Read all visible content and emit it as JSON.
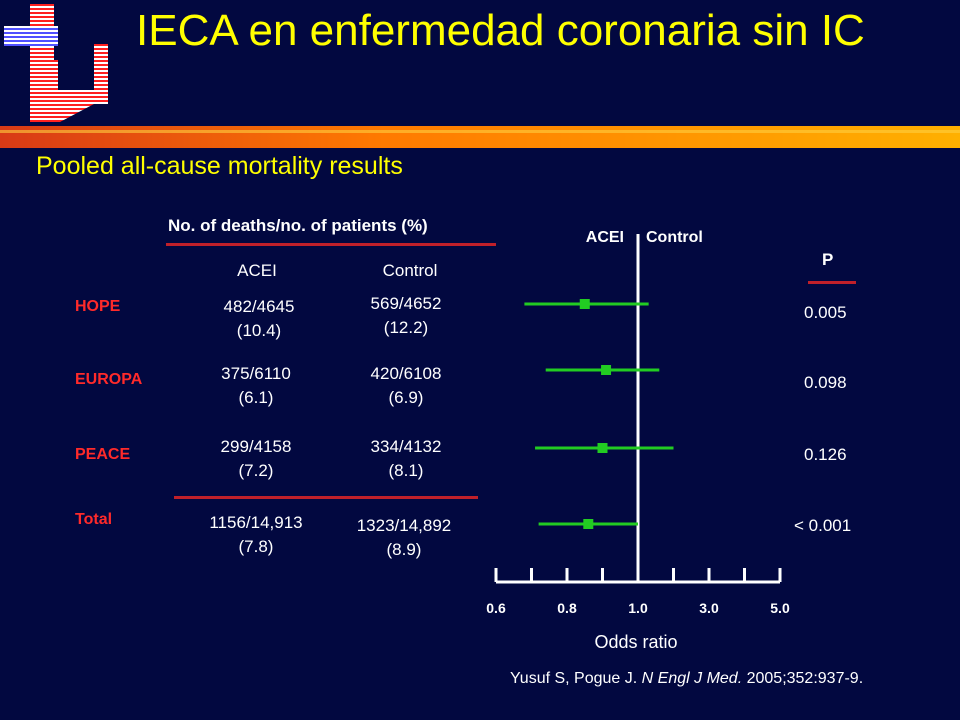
{
  "title": "IECA en enfermedad coronaria sin IC",
  "subtitle": "Pooled all-cause mortality results",
  "table": {
    "group_header": "No. of deaths/no. of patients (%)",
    "col_acei": "ACEI",
    "col_control": "Control",
    "p_header": "P",
    "rows": [
      {
        "trial": "HOPE",
        "acei_n": "482/4645",
        "acei_pct": "(10.4)",
        "control_n": "569/4652",
        "control_pct": "(12.2)",
        "p": "0.005"
      },
      {
        "trial": "EUROPA",
        "acei_n": "375/6110",
        "acei_pct": "(6.1)",
        "control_n": "420/6108",
        "control_pct": "(6.9)",
        "p": "0.098"
      },
      {
        "trial": "PEACE",
        "acei_n": "299/4158",
        "acei_pct": "(7.2)",
        "control_n": "334/4132",
        "control_pct": "(8.1)",
        "p": "0.126"
      },
      {
        "trial": "Total",
        "acei_n": "1156/14,913",
        "acei_pct": "(7.8)",
        "control_n": "1323/14,892",
        "control_pct": "(8.9)",
        "p": "< 0.001"
      }
    ]
  },
  "chart_data": {
    "type": "scatter",
    "title": "",
    "xlabel": "Odds ratio",
    "ylabel": "",
    "side_labels": {
      "left": "ACEI",
      "right": "Control"
    },
    "x_ticks": [
      "0.6",
      "0.8",
      "1.0",
      "3.0",
      "5.0"
    ],
    "x_tick_values": [
      0.6,
      0.8,
      1.0,
      3.0,
      5.0
    ],
    "reference_line": 1.0,
    "series": [
      {
        "trial": "HOPE",
        "or": 0.85,
        "ci_low": 0.68,
        "ci_high": 1.3
      },
      {
        "trial": "EUROPA",
        "or": 0.91,
        "ci_low": 0.74,
        "ci_high": 1.6
      },
      {
        "trial": "PEACE",
        "or": 0.9,
        "ci_low": 0.71,
        "ci_high": 2.0
      },
      {
        "trial": "Total",
        "or": 0.86,
        "ci_low": 0.72,
        "ci_high": 1.0
      }
    ],
    "colors": {
      "marker": "#22cc22",
      "axis": "#ffffff"
    }
  },
  "citation": {
    "authors": "Yusuf S, Pogue J.",
    "journal": "N Engl J Med.",
    "ref": "2005;352:937-9."
  }
}
